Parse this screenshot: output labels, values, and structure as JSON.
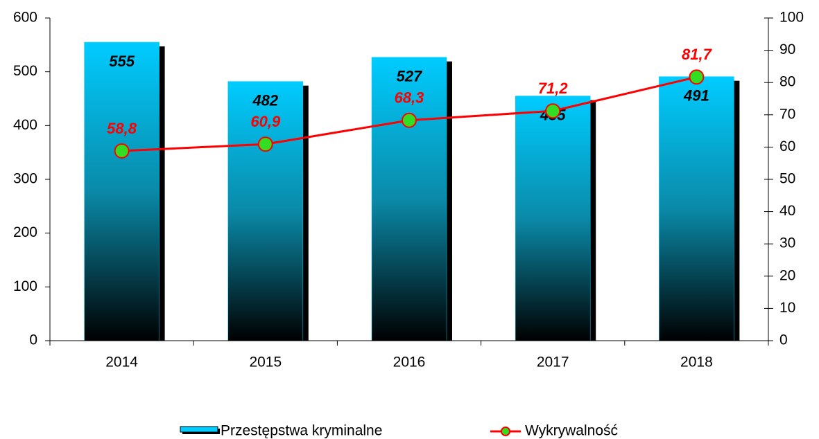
{
  "chart_data": {
    "type": "bar",
    "categories": [
      "2014",
      "2015",
      "2016",
      "2017",
      "2018"
    ],
    "series": [
      {
        "name": "Przestępstwa kryminalne",
        "type": "bar",
        "color": "#00ccff",
        "values": [
          555,
          482,
          527,
          455,
          491
        ]
      },
      {
        "name": "Wykrywalność",
        "type": "line",
        "axis": "y2",
        "color": "#ff0000",
        "marker_color": "#33dd22",
        "values": [
          58.8,
          60.9,
          68.3,
          71.2,
          81.7
        ],
        "value_labels": [
          "58,8",
          "60,9",
          "68,3",
          "71,2",
          "81,7"
        ]
      }
    ],
    "ylim": [
      0,
      600
    ],
    "yticks": [
      0,
      100,
      200,
      300,
      400,
      500,
      600
    ],
    "y2lim": [
      0,
      100
    ],
    "y2ticks": [
      0,
      10,
      20,
      30,
      40,
      50,
      60,
      70,
      80,
      90,
      100
    ],
    "grid": false,
    "legend": "bottom"
  }
}
